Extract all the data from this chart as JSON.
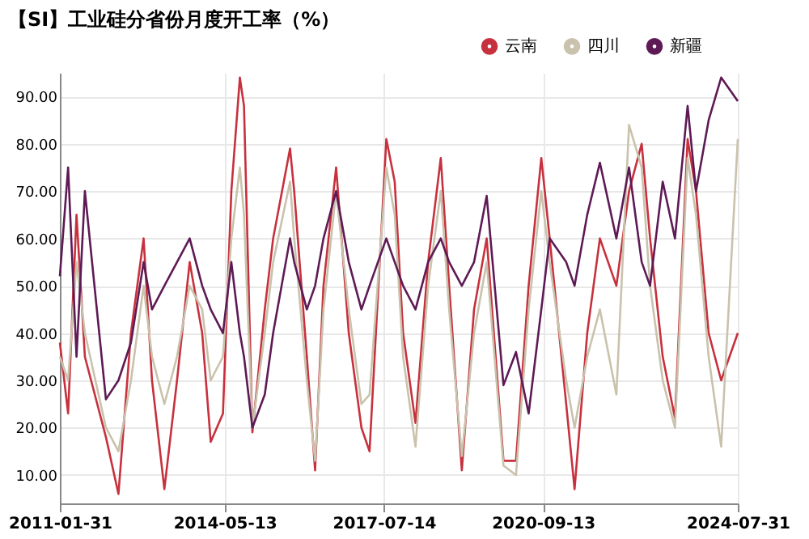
{
  "chart_data": {
    "type": "line",
    "title": "【SI】工业硅分省份月度开工率（%）",
    "x": [
      "2011-01-31",
      "2011-04",
      "2011-06",
      "2011-08",
      "2012-01",
      "2012-04",
      "2012-07",
      "2012-10",
      "2012-12",
      "2013-03",
      "2013-06",
      "2013-09",
      "2013-12",
      "2014-02",
      "2014-05",
      "2014-07",
      "2014-09",
      "2014-10",
      "2014-12",
      "2015-03",
      "2015-05",
      "2015-09",
      "2015-10",
      "2016-01",
      "2016-03",
      "2016-05",
      "2016-08",
      "2016-11",
      "2017-02",
      "2017-04",
      "2017-08",
      "2017-10",
      "2017-12",
      "2018-03",
      "2018-06",
      "2018-09",
      "2018-11",
      "2019-02",
      "2019-05",
      "2019-08",
      "2019-12",
      "2020-03",
      "2020-06",
      "2020-09",
      "2020-11",
      "2021-03",
      "2021-05",
      "2021-08",
      "2021-11",
      "2022-03",
      "2022-06",
      "2022-09",
      "2022-11",
      "2023-02",
      "2023-05",
      "2023-08",
      "2023-10",
      "2024-01",
      "2024-04",
      "2024-07-31"
    ],
    "series": [
      {
        "name": "云南",
        "color": "#c7313d",
        "values": [
          38,
          23,
          65,
          35,
          18,
          6,
          40,
          60,
          30,
          7,
          30,
          55,
          40,
          17,
          23,
          70,
          94,
          88,
          19,
          45,
          60,
          79,
          70,
          35,
          11,
          50,
          75,
          40,
          20,
          15,
          81,
          72,
          40,
          21,
          55,
          77,
          50,
          11,
          45,
          60,
          13,
          13,
          50,
          77,
          60,
          25,
          7,
          40,
          60,
          50,
          70,
          80,
          60,
          35,
          22,
          81,
          70,
          40,
          30,
          40
        ]
      },
      {
        "name": "四川",
        "color": "#c9c2ad",
        "values": [
          35,
          30,
          55,
          40,
          20,
          15,
          30,
          50,
          35,
          25,
          35,
          50,
          45,
          30,
          35,
          60,
          75,
          65,
          20,
          40,
          55,
          72,
          60,
          30,
          13,
          45,
          70,
          45,
          25,
          27,
          75,
          65,
          35,
          16,
          50,
          70,
          45,
          14,
          40,
          55,
          12,
          10,
          45,
          70,
          55,
          30,
          20,
          35,
          45,
          27,
          84,
          75,
          50,
          30,
          20,
          77,
          65,
          35,
          16,
          81
        ]
      },
      {
        "name": "新疆",
        "color": "#5e1a55",
        "values": [
          52,
          75,
          35,
          70,
          26,
          30,
          38,
          55,
          45,
          50,
          55,
          60,
          50,
          45,
          40,
          55,
          40,
          35,
          20,
          27,
          40,
          60,
          55,
          45,
          50,
          60,
          70,
          55,
          45,
          50,
          60,
          55,
          50,
          45,
          55,
          60,
          55,
          50,
          55,
          69,
          29,
          36,
          23,
          45,
          60,
          55,
          50,
          65,
          76,
          60,
          75,
          55,
          50,
          72,
          60,
          88,
          70,
          85,
          94,
          89
        ]
      }
    ],
    "ylim": [
      4,
      95
    ],
    "yticks": [
      {
        "value": 10,
        "label": "10.00"
      },
      {
        "value": 20,
        "label": "20.00"
      },
      {
        "value": 30,
        "label": "30.00"
      },
      {
        "value": 40,
        "label": "40.00"
      },
      {
        "value": 50,
        "label": "50.00"
      },
      {
        "value": 60,
        "label": "60.00"
      },
      {
        "value": 70,
        "label": "70.00"
      },
      {
        "value": 80,
        "label": "80.00"
      },
      {
        "value": 90,
        "label": "90.00"
      }
    ],
    "xlim": [
      "2011-01-31",
      "2024-07-31"
    ],
    "xticks": [
      "2011-01-31",
      "2014-05-13",
      "2017-07-14",
      "2020-09-13",
      "2024-07-31"
    ],
    "grid": true,
    "legend": "top right",
    "marker": "none",
    "line_style": "solid"
  }
}
